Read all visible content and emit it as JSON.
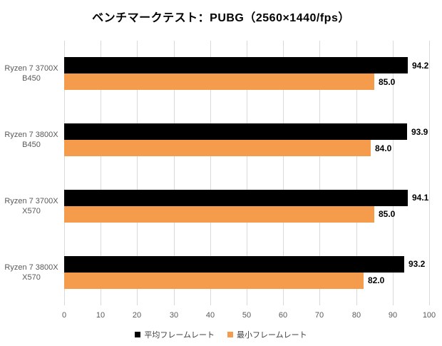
{
  "chart_data": {
    "type": "bar",
    "orientation": "horizontal",
    "title": "ベンチマークテスト：PUBG（2560×1440/fps）",
    "categories": [
      [
        "Ryzen 7 3700X",
        "B450"
      ],
      [
        "Ryzen 7 3800X",
        "B450"
      ],
      [
        "Ryzen 7 3700X",
        "X570"
      ],
      [
        "Ryzen 7 3800X",
        "X570"
      ]
    ],
    "series": [
      {
        "name": "平均フレームレート",
        "color": "#000000",
        "values": [
          94.2,
          93.9,
          94.1,
          93.2
        ]
      },
      {
        "name": "最小フレームレート",
        "color": "#F49B4C",
        "values": [
          85.0,
          84.0,
          85.0,
          82.0
        ]
      }
    ],
    "xlim": [
      0,
      100
    ],
    "xticks": [
      0,
      10,
      20,
      30,
      40,
      50,
      60,
      70,
      80,
      90,
      100
    ],
    "grid": "vertical",
    "gridline_color": "#D9D9D9",
    "axis_label_color": "#595959",
    "value_label_color": "#000000",
    "value_label_decimals": 1,
    "value_labels": "outside-end",
    "legend_position": "bottom"
  }
}
